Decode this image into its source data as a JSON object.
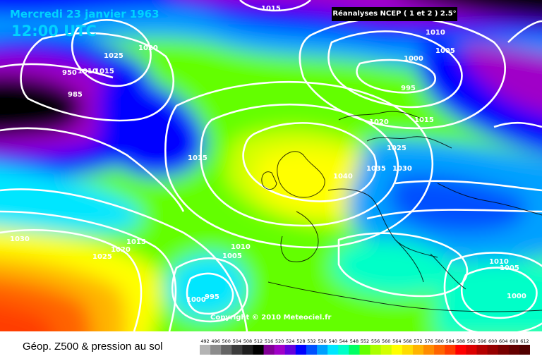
{
  "header": {
    "date": "Mercredi 23 janvier 1963",
    "time": "12:00 UTC",
    "source": "Réanalyses NCEP ( 1 et 2 ) 2.5°"
  },
  "copyright": "Copyright © 2010 Meteociel.fr",
  "footer": {
    "title": "Géop. Z500 & pression au sol"
  },
  "legend": {
    "values": [
      "492",
      "496",
      "500",
      "504",
      "508",
      "512",
      "516",
      "520",
      "524",
      "528",
      "532",
      "536",
      "540",
      "544",
      "548",
      "552",
      "556",
      "560",
      "564",
      "568",
      "572",
      "576",
      "580",
      "584",
      "588",
      "592",
      "596",
      "600",
      "604",
      "608",
      "612"
    ],
    "colors": [
      "#b4b4b4",
      "#8c8c8c",
      "#646464",
      "#3c3c3c",
      "#1e1e1e",
      "#000000",
      "#820096",
      "#a000c8",
      "#6400dc",
      "#0000ff",
      "#0050ff",
      "#00a0ff",
      "#00e6ff",
      "#00ffc8",
      "#00ff64",
      "#64ff00",
      "#aaff00",
      "#d2ff00",
      "#ffff00",
      "#ffdc00",
      "#ffb400",
      "#ff8c00",
      "#ff6400",
      "#ff3c00",
      "#ff0000",
      "#dc0000",
      "#b40000",
      "#960000",
      "#780000",
      "#640000",
      "#500000"
    ]
  },
  "isobar_labels": [
    "1015",
    "1020",
    "1025",
    "950",
    "1010",
    "1015",
    "985",
    "1010",
    "1005",
    "1000",
    "995",
    "1020",
    "1015",
    "1025",
    "1035",
    "1030",
    "1040",
    "1015",
    "1030",
    "1025",
    "1020",
    "1015",
    "1010",
    "1005",
    "1000",
    "995",
    "1010",
    "1005",
    "1000"
  ],
  "map": {
    "fields": {
      "background": "#00ff64",
      "low_atlantic": "#000000",
      "high_europe": "#ffff00",
      "low_scandinavia": "#6400dc",
      "low_med": "#00a0ff",
      "warm_south": "#ff3c00"
    }
  }
}
